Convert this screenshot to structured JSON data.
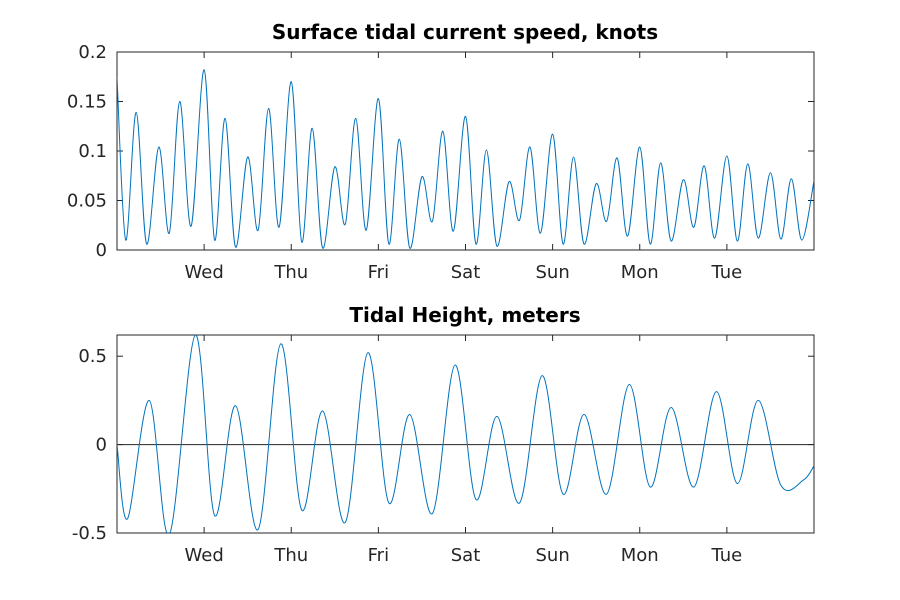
{
  "chart_data": [
    {
      "type": "line",
      "title": "Surface tidal current speed, knots",
      "xlabel": "",
      "ylabel": "",
      "x_unit": "days",
      "xlim": [
        0,
        8
      ],
      "ylim": [
        0,
        0.2
      ],
      "yticks": [
        0,
        0.05,
        0.1,
        0.15,
        0.2
      ],
      "ytick_labels": [
        "0",
        "0.05",
        "0.1",
        "0.15",
        "0.2"
      ],
      "xticks": [
        1,
        2,
        3,
        4,
        5,
        6,
        7
      ],
      "xtick_labels": [
        "Wed",
        "Thu",
        "Fri",
        "Sat",
        "Sun",
        "Mon",
        "Tue"
      ],
      "grid": false,
      "line_color": "#0072BD",
      "series": [
        {
          "x": [
            0.0,
            0.1,
            0.22,
            0.34,
            0.48,
            0.6,
            0.72,
            0.85,
            1.0,
            1.12,
            1.24,
            1.36,
            1.5,
            1.62,
            1.74,
            1.86,
            2.0,
            2.12,
            2.24,
            2.36,
            2.5,
            2.62,
            2.74,
            2.86,
            3.0,
            3.12,
            3.24,
            3.36,
            3.5,
            3.62,
            3.74,
            3.86,
            4.0,
            4.12,
            4.24,
            4.36,
            4.5,
            4.62,
            4.74,
            4.86,
            5.0,
            5.12,
            5.24,
            5.36,
            5.5,
            5.62,
            5.74,
            5.86,
            6.0,
            6.12,
            6.24,
            6.36,
            6.5,
            6.62,
            6.74,
            6.86,
            7.0,
            7.12,
            7.24,
            7.36,
            7.5,
            7.62,
            7.74,
            7.86,
            8.0
          ],
          "y": [
            0.175,
            0.01,
            0.139,
            0.006,
            0.104,
            0.017,
            0.15,
            0.024,
            0.182,
            0.01,
            0.133,
            0.003,
            0.094,
            0.02,
            0.143,
            0.023,
            0.17,
            0.008,
            0.123,
            0.002,
            0.084,
            0.026,
            0.133,
            0.02,
            0.153,
            0.006,
            0.112,
            0.002,
            0.074,
            0.029,
            0.12,
            0.019,
            0.135,
            0.006,
            0.101,
            0.004,
            0.069,
            0.03,
            0.104,
            0.017,
            0.117,
            0.006,
            0.094,
            0.006,
            0.067,
            0.029,
            0.093,
            0.014,
            0.104,
            0.006,
            0.088,
            0.009,
            0.071,
            0.023,
            0.085,
            0.012,
            0.095,
            0.009,
            0.087,
            0.012,
            0.078,
            0.011,
            0.072,
            0.01,
            0.07
          ]
        }
      ]
    },
    {
      "type": "line",
      "title": "Tidal Height, meters",
      "xlabel": "",
      "ylabel": "",
      "x_unit": "days",
      "xlim": [
        0,
        8
      ],
      "ylim": [
        -0.5,
        0.62
      ],
      "yticks": [
        -0.5,
        0,
        0.5
      ],
      "ytick_labels": [
        "-0.5",
        "0",
        "0.5"
      ],
      "xticks": [
        1,
        2,
        3,
        4,
        5,
        6,
        7
      ],
      "xtick_labels": [
        "Wed",
        "Thu",
        "Fri",
        "Sat",
        "Sun",
        "Mon",
        "Tue"
      ],
      "grid": false,
      "zero_line": true,
      "line_color": "#0072BD",
      "series": [
        {
          "x": [
            0.0,
            0.12,
            0.37,
            0.6,
            0.9,
            1.12,
            1.36,
            1.62,
            1.88,
            2.12,
            2.36,
            2.62,
            2.88,
            3.12,
            3.36,
            3.62,
            3.88,
            4.12,
            4.36,
            4.62,
            4.88,
            5.12,
            5.36,
            5.62,
            5.88,
            6.12,
            6.36,
            6.62,
            6.88,
            7.12,
            7.36,
            7.62,
            7.88,
            8.0
          ],
          "y": [
            0.0,
            -0.42,
            0.25,
            -0.51,
            0.62,
            -0.4,
            0.22,
            -0.48,
            0.57,
            -0.37,
            0.19,
            -0.44,
            0.52,
            -0.33,
            0.17,
            -0.39,
            0.45,
            -0.31,
            0.16,
            -0.33,
            0.39,
            -0.28,
            0.17,
            -0.28,
            0.34,
            -0.24,
            0.21,
            -0.24,
            0.3,
            -0.22,
            0.25,
            -0.23,
            -0.2,
            -0.12
          ]
        }
      ]
    }
  ]
}
